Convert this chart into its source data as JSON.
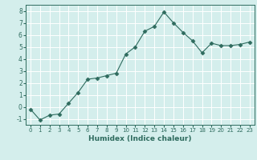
{
  "x": [
    0,
    1,
    2,
    3,
    4,
    5,
    6,
    7,
    8,
    9,
    10,
    11,
    12,
    13,
    14,
    15,
    16,
    17,
    18,
    19,
    20,
    21,
    22,
    23
  ],
  "y": [
    -0.2,
    -1.1,
    -0.7,
    -0.6,
    0.3,
    1.2,
    2.3,
    2.4,
    2.6,
    2.8,
    4.4,
    5.0,
    6.3,
    6.7,
    7.9,
    7.0,
    6.2,
    5.5,
    4.5,
    5.3,
    5.1,
    5.1,
    5.2,
    5.4
  ],
  "line_color": "#2e6b5e",
  "marker": "D",
  "marker_size": 2.5,
  "bg_color": "#d4eeec",
  "grid_color": "#ffffff",
  "xlabel": "Humidex (Indice chaleur)",
  "xlim": [
    -0.5,
    23.5
  ],
  "ylim": [
    -1.5,
    8.5
  ],
  "yticks": [
    -1,
    0,
    1,
    2,
    3,
    4,
    5,
    6,
    7,
    8
  ],
  "xticks": [
    0,
    1,
    2,
    3,
    4,
    5,
    6,
    7,
    8,
    9,
    10,
    11,
    12,
    13,
    14,
    15,
    16,
    17,
    18,
    19,
    20,
    21,
    22,
    23
  ],
  "tick_color": "#2e6b5e",
  "label_color": "#2e6b5e",
  "xlabel_fontsize": 6.5,
  "tick_fontsize_x": 5.0,
  "tick_fontsize_y": 5.5
}
